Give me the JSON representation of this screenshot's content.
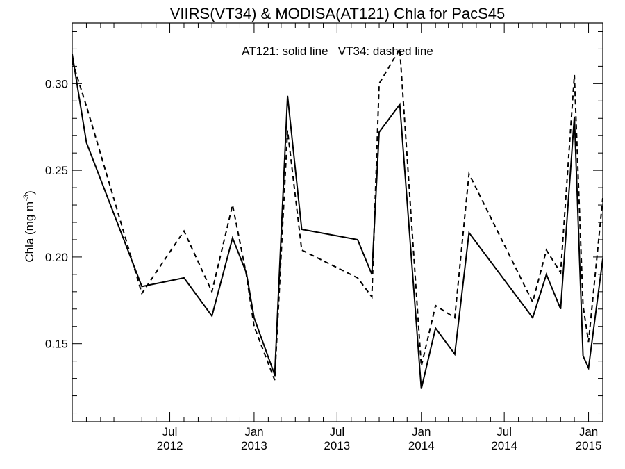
{
  "chart_data": {
    "type": "line",
    "title": "VIIRS(VT34) & MODISA(AT121)  Chla for PacS45",
    "annotation": "AT121: solid line   VT34: dashed line",
    "ylabel": "Chla (mg m",
    "ylabel_exponent": "-3",
    "ylabel_close": ")",
    "ylim": [
      0.105,
      0.335
    ],
    "yticks": [
      {
        "value": 0.15,
        "label": "0.15"
      },
      {
        "value": 0.2,
        "label": "0.20"
      },
      {
        "value": 0.25,
        "label": "0.25"
      },
      {
        "value": 0.3,
        "label": "0.30"
      }
    ],
    "xlim": [
      "2011-12-01",
      "2015-02-01"
    ],
    "xticks": [
      {
        "date": "2012-07-01",
        "line1": "Jul",
        "line2": "2012"
      },
      {
        "date": "2013-01-01",
        "line1": "Jan",
        "line2": "2013"
      },
      {
        "date": "2013-07-01",
        "line1": "Jul",
        "line2": "2013"
      },
      {
        "date": "2014-01-01",
        "line1": "Jan",
        "line2": "2014"
      },
      {
        "date": "2014-07-01",
        "line1": "Jul",
        "line2": "2014"
      },
      {
        "date": "2015-01-01",
        "line1": "Jan",
        "line2": "2015"
      }
    ],
    "series": [
      {
        "name": "AT121",
        "style": "solid",
        "color": "#000000",
        "points": [
          [
            "2011-12-01",
            0.317
          ],
          [
            "2012-01-01",
            0.266
          ],
          [
            "2012-05-01",
            0.183
          ],
          [
            "2012-08-01",
            0.188
          ],
          [
            "2012-10-01",
            0.166
          ],
          [
            "2012-11-15",
            0.211
          ],
          [
            "2012-12-15",
            0.191
          ],
          [
            "2013-01-01",
            0.165
          ],
          [
            "2013-02-15",
            0.132
          ],
          [
            "2013-03-15",
            0.293
          ],
          [
            "2013-04-15",
            0.216
          ],
          [
            "2013-08-15",
            0.21
          ],
          [
            "2013-09-15",
            0.19
          ],
          [
            "2013-10-01",
            0.272
          ],
          [
            "2013-11-15",
            0.288
          ],
          [
            "2014-01-01",
            0.124
          ],
          [
            "2014-02-01",
            0.159
          ],
          [
            "2014-03-15",
            0.144
          ],
          [
            "2014-04-15",
            0.214
          ],
          [
            "2014-09-01",
            0.165
          ],
          [
            "2014-10-01",
            0.19
          ],
          [
            "2014-11-01",
            0.17
          ],
          [
            "2014-12-01",
            0.281
          ],
          [
            "2014-12-20",
            0.143
          ],
          [
            "2015-01-01",
            0.136
          ],
          [
            "2015-02-01",
            0.199
          ]
        ]
      },
      {
        "name": "VT34",
        "style": "dashed",
        "color": "#000000",
        "points": [
          [
            "2011-12-01",
            0.313
          ],
          [
            "2012-01-01",
            0.287
          ],
          [
            "2012-05-01",
            0.179
          ],
          [
            "2012-08-01",
            0.215
          ],
          [
            "2012-10-01",
            0.18
          ],
          [
            "2012-11-15",
            0.23
          ],
          [
            "2012-12-15",
            0.19
          ],
          [
            "2013-01-01",
            0.16
          ],
          [
            "2013-02-15",
            0.129
          ],
          [
            "2013-03-15",
            0.273
          ],
          [
            "2013-04-15",
            0.204
          ],
          [
            "2013-08-15",
            0.188
          ],
          [
            "2013-09-15",
            0.177
          ],
          [
            "2013-10-01",
            0.3
          ],
          [
            "2013-11-15",
            0.32
          ],
          [
            "2014-01-01",
            0.137
          ],
          [
            "2014-02-01",
            0.172
          ],
          [
            "2014-03-15",
            0.165
          ],
          [
            "2014-04-15",
            0.248
          ],
          [
            "2014-09-01",
            0.174
          ],
          [
            "2014-10-01",
            0.204
          ],
          [
            "2014-11-01",
            0.191
          ],
          [
            "2014-12-01",
            0.305
          ],
          [
            "2014-12-20",
            0.172
          ],
          [
            "2015-01-01",
            0.151
          ],
          [
            "2015-02-01",
            0.234
          ]
        ]
      }
    ],
    "grid": false,
    "minor_ticks": true
  }
}
